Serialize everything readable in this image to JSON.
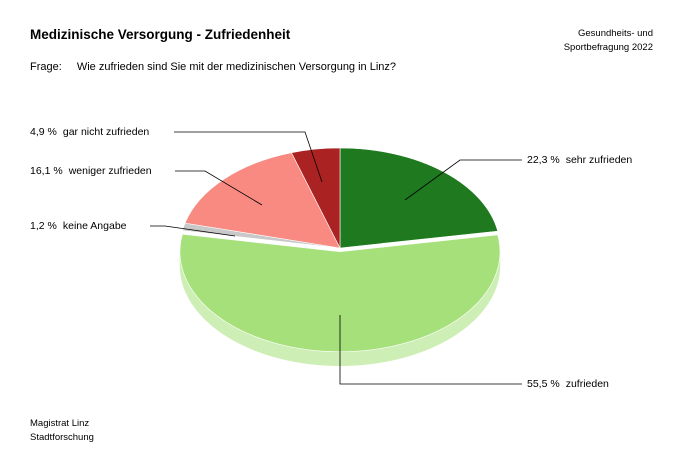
{
  "header": {
    "title": "Medizinische Versorgung - Zufriedenheit",
    "survey_line1": "Gesundheits- und",
    "survey_line2": "Sportbefragung 2022"
  },
  "question": {
    "label": "Frage:",
    "text": "Wie zufrieden sind Sie mit der medizinischen Versorgung in Linz?"
  },
  "footer": {
    "line1": "Magistrat Linz",
    "line2": "Stadtforschung"
  },
  "chart_data": {
    "type": "pie",
    "title": "Medizinische Versorgung - Zufriedenheit",
    "slices": [
      {
        "name": "sehr zufrieden",
        "value": 22.3,
        "label": "22,3 %",
        "color": "#1f7a1f",
        "side_color": "#2e8b2e"
      },
      {
        "name": "zufrieden",
        "value": 55.5,
        "label": "55,5 %",
        "color": "#a6e07a",
        "side_color": "#cdeeb4",
        "exploded": true
      },
      {
        "name": "keine Angabe",
        "value": 1.2,
        "label": "1,2 %",
        "color": "#c8c8c8",
        "side_color": "#e0e0e0"
      },
      {
        "name": "weniger zufrieden",
        "value": 16.1,
        "label": "16,1 %",
        "color": "#f88a82",
        "side_color": "#fbb5af"
      },
      {
        "name": "gar nicht zufrieden",
        "value": 4.9,
        "label": "4,9 %",
        "color": "#aa2222",
        "side_color": "#c24040"
      }
    ],
    "style": "3d-tilted"
  }
}
